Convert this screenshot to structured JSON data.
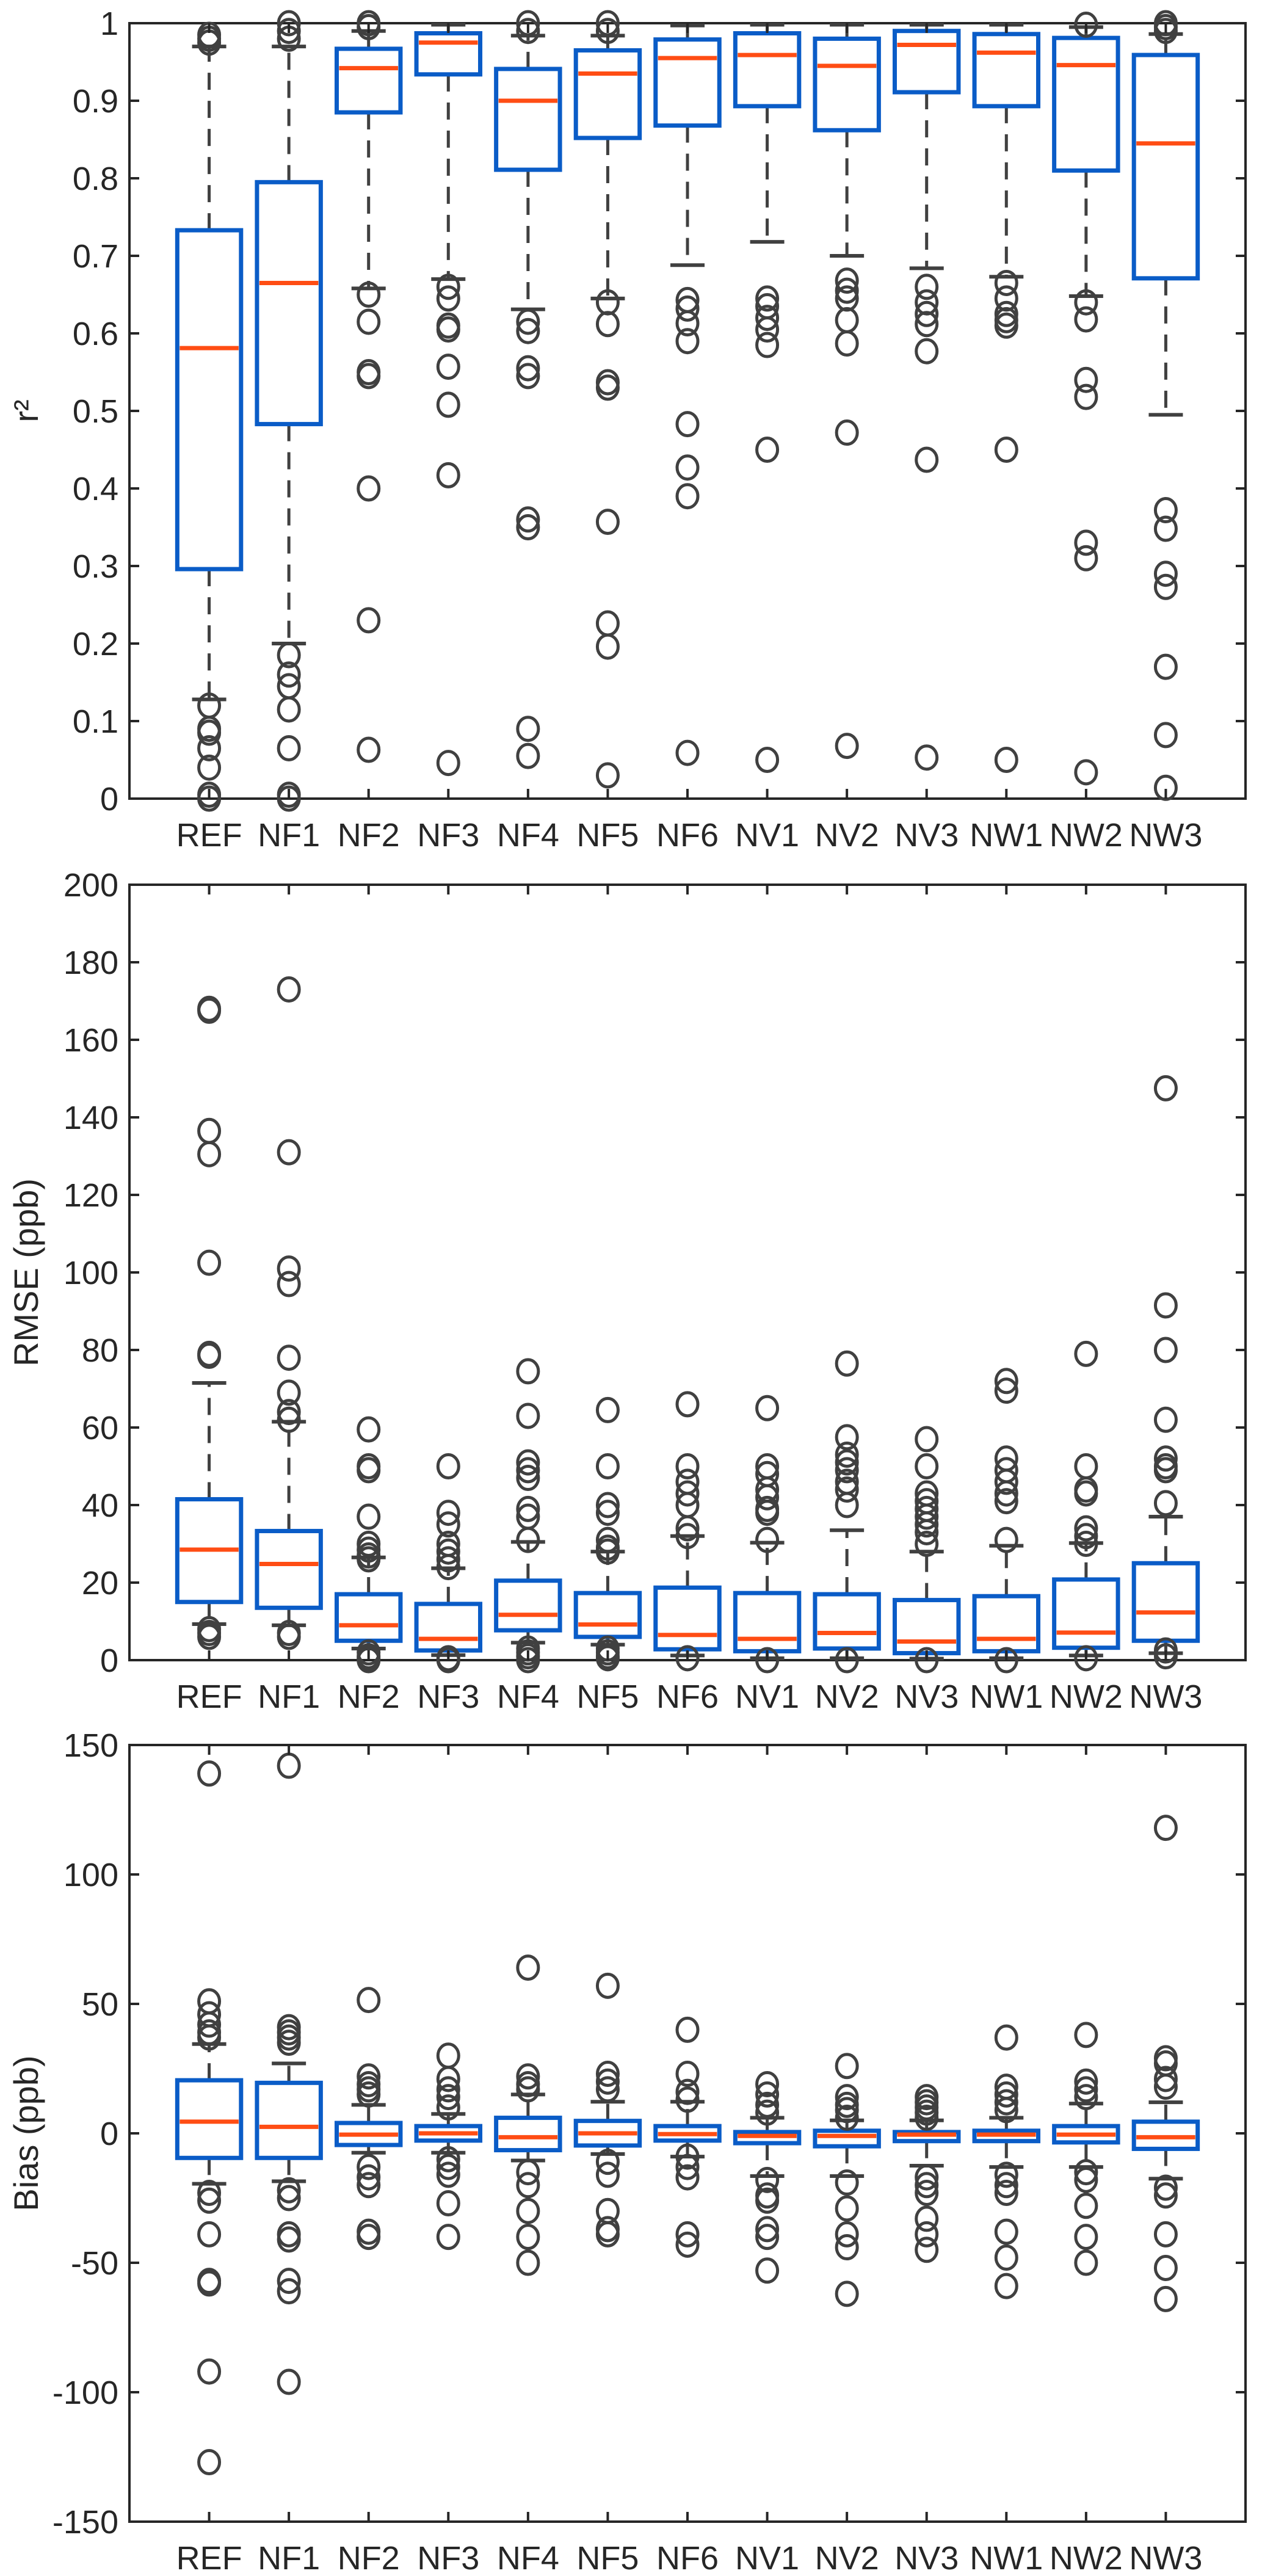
{
  "chart_data": [
    {
      "type": "box",
      "ylabel": "r²",
      "ylim": [
        0,
        1
      ],
      "yticks": [
        0,
        0.1,
        0.2,
        0.3,
        0.4,
        0.5,
        0.6,
        0.7,
        0.8,
        0.9,
        1
      ],
      "ytick_labels": [
        "0",
        "0.1",
        "0.2",
        "0.3",
        "0.4",
        "0.5",
        "0.6",
        "0.7",
        "0.8",
        "0.9",
        "1"
      ],
      "categories": [
        "REF",
        "NF1",
        "NF2",
        "NF3",
        "NF4",
        "NF5",
        "NF6",
        "NV1",
        "NV2",
        "NV3",
        "NW1",
        "NW2",
        "NW3"
      ],
      "boxes": [
        {
          "q1": 0.296,
          "median": 0.581,
          "q3": 0.733,
          "whisker_low": 0.128,
          "whisker_high": 0.97,
          "outliers": [
            0.98,
            0.975,
            0.985,
            0.12,
            0.09,
            0.085,
            0.065,
            0.04,
            0.005,
            0
          ]
        },
        {
          "q1": 0.483,
          "median": 0.665,
          "q3": 0.795,
          "whisker_low": 0.2,
          "whisker_high": 0.97,
          "outliers": [
            0.98,
            0.99,
            1.0,
            0.185,
            0.16,
            0.145,
            0.115,
            0.065,
            0.005,
            0
          ]
        },
        {
          "q1": 0.885,
          "median": 0.942,
          "q3": 0.967,
          "whisker_low": 0.658,
          "whisker_high": 0.99,
          "outliers": [
            1.0,
            0.995,
            0.65,
            0.615,
            0.55,
            0.545,
            0.4,
            0.23,
            0.063
          ]
        },
        {
          "q1": 0.934,
          "median": 0.975,
          "q3": 0.987,
          "whisker_low": 0.67,
          "whisker_high": 0.998,
          "outliers": [
            0.66,
            0.645,
            0.61,
            0.605,
            0.557,
            0.508,
            0.417,
            0.046
          ]
        },
        {
          "q1": 0.811,
          "median": 0.9,
          "q3": 0.941,
          "whisker_low": 0.631,
          "whisker_high": 0.984,
          "outliers": [
            0.99,
            1.0,
            0.615,
            0.603,
            0.555,
            0.545,
            0.36,
            0.35,
            0.09,
            0.055
          ]
        },
        {
          "q1": 0.852,
          "median": 0.935,
          "q3": 0.965,
          "whisker_low": 0.645,
          "whisker_high": 0.984,
          "outliers": [
            0.99,
            1.0,
            0.64,
            0.612,
            0.537,
            0.53,
            0.357,
            0.226,
            0.196,
            0.03
          ]
        },
        {
          "q1": 0.868,
          "median": 0.955,
          "q3": 0.979,
          "whisker_low": 0.688,
          "whisker_high": 0.997,
          "outliers": [
            0.643,
            0.632,
            0.613,
            0.59,
            0.483,
            0.427,
            0.39,
            0.059
          ]
        },
        {
          "q1": 0.893,
          "median": 0.959,
          "q3": 0.987,
          "whisker_low": 0.718,
          "whisker_high": 0.998,
          "outliers": [
            0.645,
            0.635,
            0.62,
            0.605,
            0.585,
            0.45,
            0.05
          ]
        },
        {
          "q1": 0.862,
          "median": 0.945,
          "q3": 0.98,
          "whisker_low": 0.7,
          "whisker_high": 0.998,
          "outliers": [
            0.668,
            0.655,
            0.645,
            0.617,
            0.587,
            0.472,
            0.068
          ]
        },
        {
          "q1": 0.911,
          "median": 0.972,
          "q3": 0.99,
          "whisker_low": 0.684,
          "whisker_high": 0.998,
          "outliers": [
            0.66,
            0.64,
            0.625,
            0.612,
            0.577,
            0.437,
            0.053
          ]
        },
        {
          "q1": 0.893,
          "median": 0.962,
          "q3": 0.986,
          "whisker_low": 0.673,
          "whisker_high": 0.998,
          "outliers": [
            0.665,
            0.645,
            0.625,
            0.617,
            0.61,
            0.45,
            0.05
          ]
        },
        {
          "q1": 0.81,
          "median": 0.946,
          "q3": 0.981,
          "whisker_low": 0.648,
          "whisker_high": 0.995,
          "outliers": [
            0.998,
            0.64,
            0.618,
            0.54,
            0.518,
            0.33,
            0.31,
            0.034
          ]
        },
        {
          "q1": 0.671,
          "median": 0.845,
          "q3": 0.959,
          "whisker_low": 0.495,
          "whisker_high": 0.986,
          "outliers": [
            0.99,
            0.995,
            1.0,
            0.372,
            0.348,
            0.29,
            0.273,
            0.17,
            0.082,
            0.014
          ]
        }
      ]
    },
    {
      "type": "box",
      "ylabel": "RMSE (ppb)",
      "ylim": [
        0,
        200
      ],
      "yticks": [
        0,
        20,
        40,
        60,
        80,
        100,
        120,
        140,
        160,
        180,
        200
      ],
      "ytick_labels": [
        "0",
        "20",
        "40",
        "60",
        "80",
        "100",
        "120",
        "140",
        "160",
        "180",
        "200"
      ],
      "categories": [
        "REF",
        "NF1",
        "NF2",
        "NF3",
        "NF4",
        "NF5",
        "NF6",
        "NV1",
        "NV2",
        "NV3",
        "NW1",
        "NW2",
        "NW3"
      ],
      "boxes": [
        {
          "q1": 15,
          "median": 28.5,
          "q3": 41.5,
          "whisker_low": 9.3,
          "whisker_high": 71.5,
          "outliers": [
            168,
            167.5,
            136.5,
            130.5,
            102.5,
            79,
            78.5,
            8,
            7,
            6
          ]
        },
        {
          "q1": 13.5,
          "median": 24.8,
          "q3": 33.3,
          "whisker_low": 9,
          "whisker_high": 61.5,
          "outliers": [
            173,
            131,
            101,
            97,
            78,
            69,
            64,
            62,
            7,
            6
          ]
        },
        {
          "q1": 5,
          "median": 9,
          "q3": 17,
          "whisker_low": 3,
          "whisker_high": 26.5,
          "outliers": [
            59.5,
            50,
            49,
            37,
            30,
            28.5,
            27,
            26,
            2,
            1,
            0.5,
            0
          ]
        },
        {
          "q1": 2.5,
          "median": 5.5,
          "q3": 14.5,
          "whisker_low": 1.3,
          "whisker_high": 23.7,
          "outliers": [
            50,
            38,
            35,
            30,
            28,
            26,
            24,
            0.5,
            0
          ]
        },
        {
          "q1": 7.7,
          "median": 11.7,
          "q3": 20.5,
          "whisker_low": 4.5,
          "whisker_high": 30.5,
          "outliers": [
            74.5,
            63,
            51,
            49,
            47,
            39,
            37,
            31,
            3,
            2,
            1,
            0
          ]
        },
        {
          "q1": 6,
          "median": 9.2,
          "q3": 17.3,
          "whisker_low": 4,
          "whisker_high": 28,
          "outliers": [
            64.5,
            50,
            40,
            38,
            31,
            29,
            28,
            3,
            2,
            1,
            0.5
          ]
        },
        {
          "q1": 2.8,
          "median": 6.5,
          "q3": 18.7,
          "whisker_low": 1.2,
          "whisker_high": 32,
          "outliers": [
            66,
            50,
            46,
            43,
            40,
            34,
            32,
            0.5
          ]
        },
        {
          "q1": 2.3,
          "median": 5.5,
          "q3": 17.3,
          "whisker_low": 0.5,
          "whisker_high": 30.3,
          "outliers": [
            65,
            50,
            48,
            44,
            42,
            39,
            38,
            31,
            0
          ]
        },
        {
          "q1": 3,
          "median": 7,
          "q3": 17,
          "whisker_low": 0.5,
          "whisker_high": 33.5,
          "outliers": [
            76.5,
            57.5,
            53,
            51,
            49,
            46,
            44,
            40,
            0
          ]
        },
        {
          "q1": 1.8,
          "median": 4.8,
          "q3": 15.5,
          "whisker_low": 0.4,
          "whisker_high": 28,
          "outliers": [
            57,
            50,
            43,
            41,
            39,
            37,
            35,
            33,
            30,
            0
          ]
        },
        {
          "q1": 2.3,
          "median": 5.5,
          "q3": 16.5,
          "whisker_low": 0.5,
          "whisker_high": 29.5,
          "outliers": [
            72,
            69.5,
            52,
            49,
            46,
            43,
            41,
            31,
            0
          ]
        },
        {
          "q1": 3.2,
          "median": 7.1,
          "q3": 20.8,
          "whisker_low": 1.2,
          "whisker_high": 30.2,
          "outliers": [
            79,
            50,
            44,
            43,
            34,
            32,
            30,
            0.5
          ]
        },
        {
          "q1": 5,
          "median": 12.3,
          "q3": 25,
          "whisker_low": 1.8,
          "whisker_high": 37,
          "outliers": [
            147.5,
            91.5,
            80,
            62,
            52,
            50,
            49,
            40.5,
            2.5,
            1
          ]
        }
      ]
    },
    {
      "type": "box",
      "ylabel": "Bias (ppb)",
      "ylim": [
        -150,
        150
      ],
      "yticks": [
        -150,
        -100,
        -50,
        0,
        50,
        100,
        150
      ],
      "ytick_labels": [
        "-150",
        "-100",
        "-50",
        "0",
        "50",
        "100",
        "150"
      ],
      "categories": [
        "REF",
        "NF1",
        "NF2",
        "NF3",
        "NF4",
        "NF5",
        "NF6",
        "NV1",
        "NV2",
        "NV3",
        "NW1",
        "NW2",
        "NW3"
      ],
      "boxes": [
        {
          "q1": -9.5,
          "median": 4.5,
          "q3": 20.5,
          "whisker_low": -19.5,
          "whisker_high": 34.5,
          "outliers": [
            139,
            51,
            46,
            42,
            39,
            37,
            -23,
            -26,
            -39,
            -57,
            -58,
            -92,
            -127
          ]
        },
        {
          "q1": -9.5,
          "median": 2.5,
          "q3": 19.5,
          "whisker_low": -18.5,
          "whisker_high": 27,
          "outliers": [
            142,
            41,
            39,
            37,
            35,
            -22,
            -25,
            -39,
            -41,
            -57,
            -61,
            -96
          ]
        },
        {
          "q1": -4.5,
          "median": -0.5,
          "q3": 4,
          "whisker_low": -7.5,
          "whisker_high": 11,
          "outliers": [
            51.5,
            22,
            19,
            17,
            15,
            -13,
            -17,
            -20,
            -38,
            -40
          ]
        },
        {
          "q1": -2.8,
          "median": 0,
          "q3": 2.8,
          "whisker_low": -7.5,
          "whisker_high": 7.5,
          "outliers": [
            30,
            21,
            17,
            14,
            10,
            -10,
            -13,
            -16,
            -27,
            -40
          ]
        },
        {
          "q1": -6.5,
          "median": -1.5,
          "q3": 6,
          "whisker_low": -10.5,
          "whisker_high": 15,
          "outliers": [
            64,
            22,
            19,
            17,
            -15,
            -20,
            -30,
            -40,
            -50
          ]
        },
        {
          "q1": -4.7,
          "median": 0,
          "q3": 4.8,
          "whisker_low": -8,
          "whisker_high": 12.2,
          "outliers": [
            57,
            23,
            20,
            17,
            -11,
            -16,
            -30,
            -37,
            -39
          ]
        },
        {
          "q1": -2.8,
          "median": -0.3,
          "q3": 2.8,
          "whisker_low": -9,
          "whisker_high": 12.2,
          "outliers": [
            40,
            23,
            16,
            13,
            -9,
            -13,
            -17,
            -39,
            -43
          ]
        },
        {
          "q1": -3.8,
          "median": -1,
          "q3": 0.5,
          "whisker_low": -16.5,
          "whisker_high": 6,
          "outliers": [
            19,
            15,
            11,
            8,
            -18,
            -24,
            -26,
            -37,
            -40,
            -53
          ]
        },
        {
          "q1": -5,
          "median": -1,
          "q3": 1,
          "whisker_low": -16.5,
          "whisker_high": 5,
          "outliers": [
            26,
            14,
            11,
            9,
            6,
            -19,
            -29,
            -39,
            -44,
            -62
          ]
        },
        {
          "q1": -3,
          "median": -0.5,
          "q3": 0.5,
          "whisker_low": -12.5,
          "whisker_high": 5,
          "outliers": [
            14,
            12,
            10,
            8,
            6,
            -17,
            -20,
            -23,
            -33,
            -39,
            -45
          ]
        },
        {
          "q1": -3,
          "median": -0.5,
          "q3": 1,
          "whisker_low": -13,
          "whisker_high": 6,
          "outliers": [
            37,
            18,
            15,
            12,
            9,
            -16,
            -20,
            -23,
            -38,
            -48,
            -59
          ]
        },
        {
          "q1": -3.5,
          "median": -0.5,
          "q3": 2.8,
          "whisker_low": -13,
          "whisker_high": 11.5,
          "outliers": [
            38,
            20,
            17,
            14,
            -15,
            -18,
            -28,
            -40,
            -50
          ]
        },
        {
          "q1": -6,
          "median": -1.5,
          "q3": 4.5,
          "whisker_low": -17.5,
          "whisker_high": 12,
          "outliers": [
            118,
            29,
            27,
            21,
            18,
            -21,
            -24,
            -39,
            -52,
            -64
          ]
        }
      ]
    }
  ],
  "colors": {
    "box": "#0a5cc7",
    "median": "#ff4d14",
    "whisker": "#404040",
    "outlier": "#404040",
    "axis": "#262626"
  }
}
